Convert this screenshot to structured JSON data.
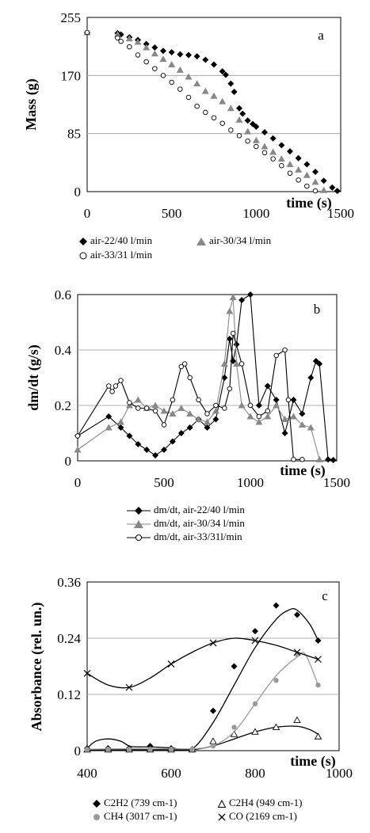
{
  "chart_data": [
    {
      "type": "scatter",
      "panel_label": "a",
      "xlabel": "time (s)",
      "ylabel": "Mass (g)",
      "xlim": [
        0,
        1500
      ],
      "ylim": [
        0,
        255
      ],
      "xticks": [
        0,
        500,
        1000,
        1500
      ],
      "yticks": [
        0,
        85,
        170,
        255
      ],
      "grid": "horizontal",
      "legend_position": "bottom",
      "series": [
        {
          "name": "air-22/40 l/min",
          "marker": "diamond-filled",
          "color": "#000000",
          "x": [
            0,
            180,
            200,
            250,
            300,
            350,
            400,
            450,
            500,
            550,
            600,
            650,
            700,
            750,
            800,
            820,
            850,
            870,
            900,
            920,
            950,
            980,
            1000,
            1050,
            1100,
            1150,
            1200,
            1250,
            1300,
            1350,
            1400,
            1450,
            1480
          ],
          "y": [
            233,
            232,
            230,
            226,
            222,
            216,
            211,
            206,
            204,
            201,
            200,
            198,
            193,
            186,
            176,
            171,
            158,
            146,
            122,
            114,
            104,
            99,
            95,
            87,
            78,
            68,
            59,
            49,
            40,
            29,
            16,
            6,
            1
          ]
        },
        {
          "name": "air-30/34 l/min",
          "marker": "triangle-filled",
          "color": "#888888",
          "x": [
            0,
            180,
            250,
            300,
            350,
            400,
            450,
            500,
            550,
            600,
            650,
            700,
            750,
            800,
            850,
            900,
            950,
            1000,
            1050,
            1100,
            1150,
            1200,
            1250,
            1300,
            1350,
            1400
          ],
          "y": [
            233,
            230,
            224,
            219,
            211,
            202,
            194,
            186,
            178,
            168,
            158,
            147,
            140,
            132,
            122,
            105,
            88,
            75,
            66,
            58,
            48,
            40,
            32,
            24,
            14,
            2
          ]
        },
        {
          "name": "air-33/31 l/min",
          "marker": "circle-open",
          "color": "#000000",
          "x": [
            0,
            180,
            200,
            250,
            300,
            350,
            400,
            450,
            500,
            550,
            600,
            650,
            700,
            750,
            800,
            850,
            900,
            950,
            1000,
            1050,
            1100,
            1150,
            1200,
            1250,
            1300,
            1350
          ],
          "y": [
            233,
            225,
            220,
            212,
            200,
            190,
            180,
            170,
            160,
            150,
            138,
            125,
            116,
            108,
            100,
            90,
            82,
            74,
            66,
            57,
            48,
            38,
            27,
            17,
            8,
            1
          ]
        }
      ]
    },
    {
      "type": "line",
      "panel_label": "b",
      "xlabel": "time (s)",
      "ylabel": "dm/dt (g/s)",
      "xlim": [
        0,
        1500
      ],
      "ylim": [
        0,
        0.6
      ],
      "xticks": [
        0,
        500,
        1000,
        1500
      ],
      "yticks": [
        0,
        0.2,
        0.4,
        0.6
      ],
      "grid": "horizontal",
      "legend_position": "bottom",
      "series": [
        {
          "name": "dm/dt, air-22/40 l/min",
          "marker": "diamond-filled",
          "color": "#000000",
          "x": [
            0,
            180,
            250,
            300,
            350,
            400,
            450,
            500,
            550,
            600,
            650,
            700,
            750,
            800,
            850,
            880,
            900,
            920,
            950,
            1000,
            1050,
            1100,
            1150,
            1200,
            1250,
            1300,
            1350,
            1380,
            1400,
            1450,
            1480
          ],
          "y": [
            0.09,
            0.16,
            0.12,
            0.09,
            0.06,
            0.04,
            0.02,
            0.04,
            0.07,
            0.1,
            0.12,
            0.15,
            0.12,
            0.15,
            0.3,
            0.44,
            0.36,
            0.42,
            0.58,
            0.6,
            0.2,
            0.27,
            0.22,
            0.1,
            0.22,
            0.17,
            0.3,
            0.36,
            0.35,
            0.005,
            0.003
          ]
        },
        {
          "name": "dm/dt, air-30/34 l/min",
          "marker": "triangle-filled",
          "color": "#888888",
          "x": [
            0,
            180,
            250,
            300,
            350,
            400,
            450,
            500,
            550,
            600,
            650,
            700,
            750,
            800,
            850,
            880,
            900,
            920,
            950,
            1000,
            1050,
            1100,
            1150,
            1200,
            1250,
            1300,
            1350,
            1400
          ],
          "y": [
            0.04,
            0.12,
            0.14,
            0.2,
            0.22,
            0.19,
            0.2,
            0.18,
            0.17,
            0.19,
            0.17,
            0.15,
            0.14,
            0.18,
            0.35,
            0.54,
            0.59,
            0.35,
            0.2,
            0.16,
            0.14,
            0.16,
            0.2,
            0.15,
            0.16,
            0.13,
            0.12,
            0.005
          ]
        },
        {
          "name": "dm/dt, air-33/31l/min",
          "marker": "circle-open",
          "color": "#000000",
          "x": [
            0,
            180,
            200,
            220,
            250,
            300,
            350,
            400,
            450,
            500,
            550,
            600,
            620,
            650,
            700,
            750,
            800,
            850,
            880,
            900,
            950,
            1000,
            1050,
            1100,
            1150,
            1200,
            1220,
            1250,
            1300
          ],
          "y": [
            0.09,
            0.27,
            0.25,
            0.27,
            0.29,
            0.21,
            0.19,
            0.19,
            0.18,
            0.13,
            0.22,
            0.34,
            0.35,
            0.3,
            0.22,
            0.17,
            0.2,
            0.19,
            0.26,
            0.46,
            0.35,
            0.2,
            0.16,
            0.18,
            0.38,
            0.4,
            0.22,
            0.005,
            0.005
          ]
        }
      ]
    },
    {
      "type": "scatter",
      "panel_label": "c",
      "xlabel": "time (s)",
      "ylabel": "Absorbance (rel. un.)",
      "xlim": [
        400,
        1000
      ],
      "ylim": [
        0,
        0.36
      ],
      "xticks": [
        400,
        600,
        800,
        1000
      ],
      "yticks": [
        0,
        0.12,
        0.24,
        0.36
      ],
      "grid": "horizontal",
      "legend_position": "bottom",
      "series": [
        {
          "name": "C2H2 (739 cm-1)",
          "marker": "diamond-filled",
          "color": "#000000",
          "x": [
            400,
            450,
            500,
            550,
            600,
            650,
            700,
            750,
            800,
            850,
            900,
            950
          ],
          "y": [
            0.005,
            0.005,
            0.005,
            0.01,
            0.005,
            0.003,
            0.085,
            0.18,
            0.255,
            0.31,
            0.29,
            0.235
          ],
          "trend_x": [
            400,
            420,
            450,
            480,
            500,
            520,
            550,
            600,
            650,
            700,
            750,
            800,
            850,
            880,
            900,
            930,
            950
          ],
          "trend_y": [
            0.005,
            0.02,
            0.025,
            0.02,
            0.01,
            0.008,
            0.008,
            0.006,
            0.004,
            0.06,
            0.14,
            0.22,
            0.28,
            0.3,
            0.3,
            0.27,
            0.235
          ]
        },
        {
          "name": "C2H4 (949 cm-1)",
          "marker": "triangle-open",
          "color": "#000000",
          "x": [
            400,
            450,
            500,
            550,
            600,
            650,
            700,
            750,
            800,
            850,
            900,
            950
          ],
          "y": [
            0.002,
            0.002,
            0.002,
            0.002,
            0.002,
            0.002,
            0.02,
            0.035,
            0.04,
            0.05,
            0.065,
            0.03
          ],
          "trend_x": [
            400,
            500,
            600,
            650,
            700,
            750,
            800,
            850,
            900,
            930,
            950
          ],
          "trend_y": [
            0.002,
            0.002,
            0.002,
            0.002,
            0.01,
            0.025,
            0.04,
            0.05,
            0.052,
            0.045,
            0.035
          ]
        },
        {
          "name": "CH4 (3017 cm-1)",
          "marker": "circle-filled",
          "color": "#999999",
          "x": [
            400,
            450,
            500,
            550,
            600,
            650,
            700,
            750,
            800,
            850,
            900,
            950
          ],
          "y": [
            0.003,
            0.003,
            0.003,
            0.003,
            0.003,
            0.003,
            0.01,
            0.05,
            0.1,
            0.15,
            0.205,
            0.14
          ],
          "trend_x": [
            400,
            500,
            600,
            650,
            700,
            750,
            800,
            850,
            900,
            920,
            950
          ],
          "trend_y": [
            0.003,
            0.004,
            0.004,
            0.004,
            0.01,
            0.04,
            0.1,
            0.16,
            0.2,
            0.205,
            0.14
          ]
        },
        {
          "name": "CO (2169 cm-1)",
          "marker": "x",
          "color": "#000000",
          "x": [
            400,
            500,
            600,
            700,
            800,
            900,
            950
          ],
          "y": [
            0.165,
            0.135,
            0.185,
            0.23,
            0.235,
            0.21,
            0.195
          ],
          "trend_x": [
            400,
            450,
            500,
            550,
            600,
            650,
            700,
            750,
            800,
            850,
            900,
            950
          ],
          "trend_y": [
            0.165,
            0.14,
            0.135,
            0.155,
            0.185,
            0.21,
            0.23,
            0.24,
            0.235,
            0.225,
            0.21,
            0.195
          ]
        }
      ]
    }
  ]
}
